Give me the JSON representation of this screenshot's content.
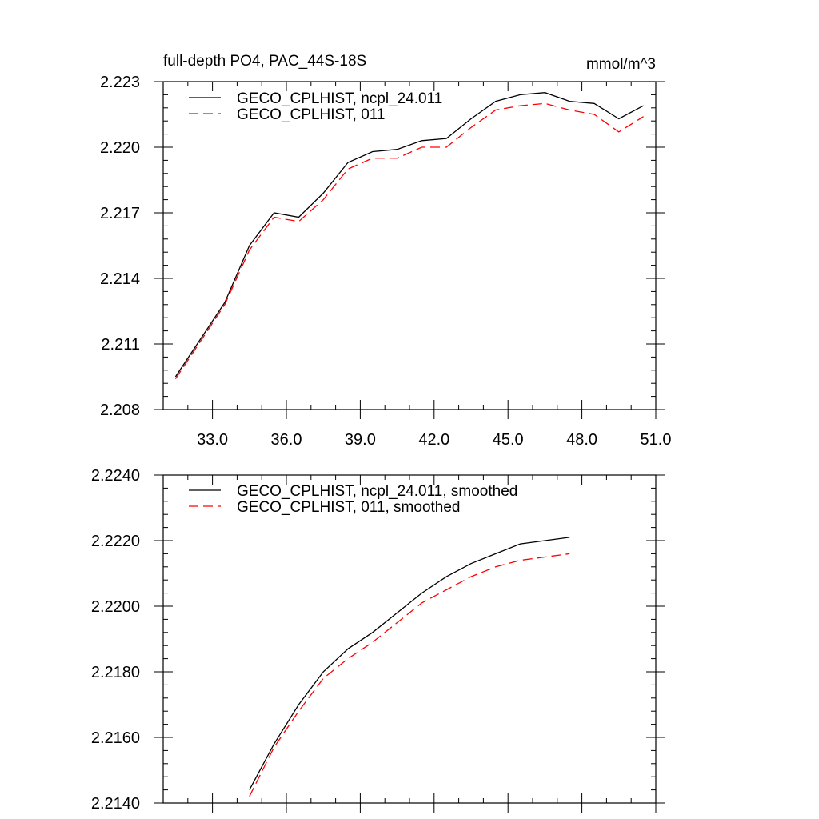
{
  "chart_data": [
    {
      "type": "line",
      "title": "full-depth PO4, PAC_44S-18S",
      "units": "mmol/m^3",
      "xlim": [
        31,
        51
      ],
      "ylim": [
        2.208,
        2.223
      ],
      "x_ticks": [
        33,
        36,
        39,
        42,
        45,
        48,
        51
      ],
      "x_tick_labels": [
        "33.0",
        "36.0",
        "39.0",
        "42.0",
        "45.0",
        "48.0",
        "51.0"
      ],
      "y_ticks": [
        2.208,
        2.211,
        2.214,
        2.217,
        2.22,
        2.223
      ],
      "y_tick_labels": [
        "2.208",
        "2.211",
        "2.214",
        "2.217",
        "2.220",
        "2.223"
      ],
      "legend_position": "top-left",
      "series": [
        {
          "name": "GECO_CPLHIST, ncpl_24.011",
          "color": "#000000",
          "dash": "solid",
          "x": [
            31.5,
            32.5,
            33.5,
            34.5,
            35.5,
            36.5,
            37.5,
            38.5,
            39.5,
            40.5,
            41.5,
            42.5,
            43.5,
            44.5,
            45.5,
            46.5,
            47.5,
            48.5,
            49.5,
            50.5
          ],
          "y": [
            2.2095,
            2.2112,
            2.2129,
            2.2155,
            2.217,
            2.2168,
            2.2179,
            2.2193,
            2.2198,
            2.2199,
            2.2203,
            2.2204,
            2.2213,
            2.2221,
            2.2224,
            2.2225,
            2.2221,
            2.222,
            2.2213,
            2.2219
          ]
        },
        {
          "name": "GECO_CPLHIST, 011",
          "color": "#ff0000",
          "dash": "dashed",
          "x": [
            31.5,
            32.5,
            33.5,
            34.5,
            35.5,
            36.5,
            37.5,
            38.5,
            39.5,
            40.5,
            41.5,
            42.5,
            43.5,
            44.5,
            45.5,
            46.5,
            47.5,
            48.5,
            49.5,
            50.5
          ],
          "y": [
            2.2094,
            2.2111,
            2.2128,
            2.2153,
            2.2168,
            2.2166,
            2.2176,
            2.219,
            2.2195,
            2.2195,
            2.22,
            2.22,
            2.2209,
            2.2217,
            2.2219,
            2.222,
            2.2217,
            2.2215,
            2.2207,
            2.2214
          ]
        }
      ]
    },
    {
      "type": "line",
      "xlim": [
        31,
        51
      ],
      "ylim": [
        2.214,
        2.224
      ],
      "x_ticks": [
        33,
        36,
        39,
        42,
        45,
        48,
        51
      ],
      "y_ticks": [
        2.214,
        2.216,
        2.218,
        2.22,
        2.222,
        2.224
      ],
      "y_tick_labels": [
        "2.2140",
        "2.2160",
        "2.2180",
        "2.2200",
        "2.2220",
        "2.2240"
      ],
      "legend_position": "top-left",
      "series": [
        {
          "name": "GECO_CPLHIST, ncpl_24.011, smoothed",
          "color": "#000000",
          "dash": "solid",
          "x": [
            34.5,
            35.5,
            36.5,
            37.5,
            38.5,
            39.5,
            40.5,
            41.5,
            42.5,
            43.5,
            44.5,
            45.5,
            46.5,
            47.5
          ],
          "y": [
            2.2144,
            2.2158,
            2.217,
            2.218,
            2.2187,
            2.2192,
            2.2198,
            2.2204,
            2.2209,
            2.2213,
            2.2216,
            2.2219,
            2.222,
            2.2221
          ]
        },
        {
          "name": "GECO_CPLHIST, 011, smoothed",
          "color": "#ff0000",
          "dash": "dashed",
          "x": [
            34.5,
            35.5,
            36.5,
            37.5,
            38.5,
            39.5,
            40.5,
            41.5,
            42.5,
            43.5,
            44.5,
            45.5,
            46.5,
            47.5
          ],
          "y": [
            2.2142,
            2.2157,
            2.2168,
            2.2178,
            2.2184,
            2.2189,
            2.2195,
            2.2201,
            2.2205,
            2.2209,
            2.2212,
            2.2214,
            2.2215,
            2.2216
          ]
        }
      ]
    }
  ]
}
